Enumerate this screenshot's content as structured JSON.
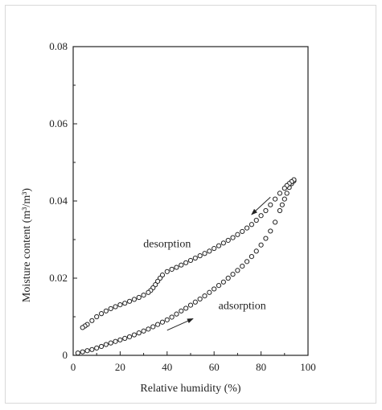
{
  "chart_data": {
    "type": "scatter",
    "title": "",
    "xlabel": "Relative humidity (%)",
    "ylabel": "Moisture content (m³/m³)",
    "xlim": [
      0,
      100
    ],
    "ylim": [
      0,
      0.08
    ],
    "x_ticks": [
      0,
      20,
      40,
      60,
      80,
      100
    ],
    "x_tick_labels": [
      "0",
      "20",
      "40",
      "60",
      "80",
      "100"
    ],
    "y_ticks": [
      0,
      0.02,
      0.04,
      0.06,
      0.08
    ],
    "y_tick_labels": [
      "0",
      "0.02",
      "0.04",
      "0.06",
      "0.08"
    ],
    "grid": false,
    "marker": "open-circle",
    "series": [
      {
        "key": "adsorption",
        "label": "adsorption",
        "x": [
          2,
          4,
          6,
          8,
          10,
          12,
          14,
          16,
          18,
          20,
          22,
          24,
          26,
          28,
          30,
          32,
          34,
          36,
          38,
          40,
          42,
          44,
          46,
          48,
          50,
          52,
          54,
          56,
          58,
          60,
          62,
          64,
          66,
          68,
          70,
          72,
          74,
          76,
          78,
          80,
          82,
          84,
          86,
          88,
          89,
          90,
          91,
          92,
          93,
          94
        ],
        "y": [
          0.0006,
          0.0009,
          0.0012,
          0.0015,
          0.0019,
          0.0023,
          0.0028,
          0.0032,
          0.0036,
          0.004,
          0.0044,
          0.0048,
          0.0053,
          0.0058,
          0.0063,
          0.0068,
          0.0074,
          0.008,
          0.0086,
          0.0092,
          0.0099,
          0.0107,
          0.0115,
          0.0122,
          0.013,
          0.0138,
          0.0146,
          0.0154,
          0.0163,
          0.0172,
          0.0181,
          0.019,
          0.02,
          0.021,
          0.022,
          0.0231,
          0.0243,
          0.0256,
          0.027,
          0.0286,
          0.0303,
          0.0322,
          0.0345,
          0.0375,
          0.039,
          0.0405,
          0.042,
          0.0435,
          0.0445,
          0.0452
        ]
      },
      {
        "key": "desorption",
        "label": "desorption",
        "x": [
          94,
          93,
          92,
          91,
          90,
          88,
          86,
          84,
          82,
          80,
          78,
          76,
          74,
          72,
          70,
          68,
          66,
          64,
          62,
          60,
          58,
          56,
          54,
          52,
          50,
          48,
          46,
          44,
          42,
          40,
          38,
          37,
          36,
          35,
          34,
          33,
          32,
          30,
          28,
          26,
          24,
          22,
          20,
          18,
          16,
          14,
          12,
          10,
          8,
          6,
          5,
          4
        ],
        "y": [
          0.0455,
          0.045,
          0.0445,
          0.044,
          0.0433,
          0.042,
          0.0405,
          0.039,
          0.0375,
          0.0362,
          0.035,
          0.0339,
          0.033,
          0.0321,
          0.0313,
          0.0305,
          0.0298,
          0.0291,
          0.0284,
          0.0277,
          0.027,
          0.0264,
          0.0258,
          0.0252,
          0.0246,
          0.024,
          0.0234,
          0.0228,
          0.0223,
          0.0217,
          0.0208,
          0.02,
          0.0192,
          0.0183,
          0.0175,
          0.0168,
          0.0163,
          0.0156,
          0.015,
          0.0145,
          0.014,
          0.0135,
          0.0131,
          0.0126,
          0.0121,
          0.0115,
          0.0108,
          0.01,
          0.009,
          0.008,
          0.0076,
          0.0072
        ]
      }
    ],
    "annotations": [
      {
        "text": "desorption",
        "x": 40,
        "y": 0.028
      },
      {
        "text": "adsorption",
        "x": 72,
        "y": 0.012
      }
    ],
    "arrows": [
      {
        "from": [
          84,
          0.041
        ],
        "to": [
          76,
          0.0365
        ],
        "direction": "decreasing humidity"
      },
      {
        "from": [
          40,
          0.0065
        ],
        "to": [
          51,
          0.0095
        ],
        "direction": "increasing humidity"
      }
    ]
  }
}
